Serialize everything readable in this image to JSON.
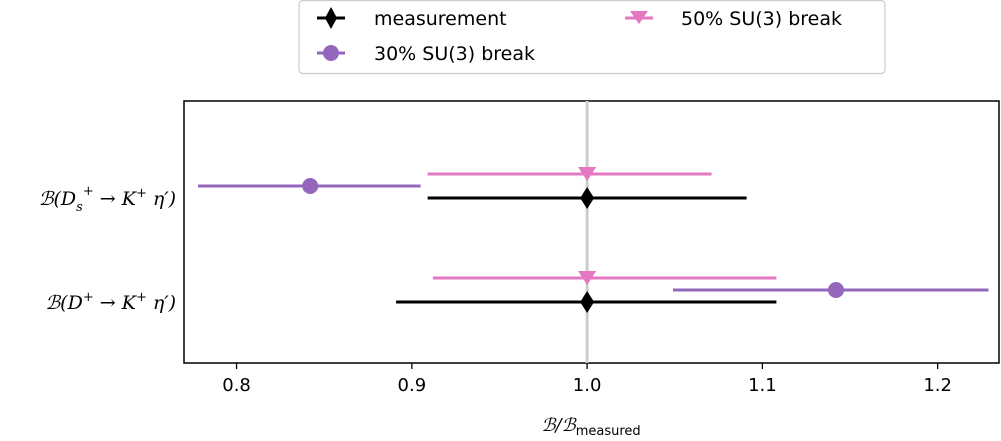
{
  "chart_data": {
    "type": "scatter",
    "title": "",
    "xlabel": "B/B_measured",
    "xlim": [
      0.77,
      1.235
    ],
    "xticks": [
      0.8,
      0.9,
      1.0,
      1.1,
      1.2
    ],
    "xtick_labels": [
      "0.8",
      "0.9",
      "1.0",
      "1.1",
      "1.2"
    ],
    "reference_line": 1.0,
    "grid": false,
    "legend_position": "top-center",
    "categories": [
      "B(D_s^+ → K^+ η′)",
      "B(D^+ → K^+ η′)"
    ],
    "series": [
      {
        "name": "measurement",
        "marker": "diamond",
        "color": "#000000",
        "points": [
          {
            "category": 0,
            "x": 1.0,
            "xerr_low": 0.091,
            "xerr_high": 0.091
          },
          {
            "category": 1,
            "x": 1.0,
            "xerr_low": 0.109,
            "xerr_high": 0.108
          }
        ]
      },
      {
        "name": "30% SU(3) break",
        "marker": "circle",
        "color": "#9467bd",
        "points": [
          {
            "category": 0,
            "x": 0.842,
            "xerr_low": 0.064,
            "xerr_high": 0.063
          },
          {
            "category": 1,
            "x": 1.142,
            "xerr_low": 0.093,
            "xerr_high": 0.087
          }
        ]
      },
      {
        "name": "50% SU(3) break",
        "marker": "triangle-down",
        "color": "#e377c2",
        "points": [
          {
            "category": 0,
            "x": 1.0,
            "xerr_low": 0.091,
            "xerr_high": 0.071
          },
          {
            "category": 1,
            "x": 1.0,
            "xerr_low": 0.088,
            "xerr_high": 0.108
          }
        ]
      }
    ]
  }
}
